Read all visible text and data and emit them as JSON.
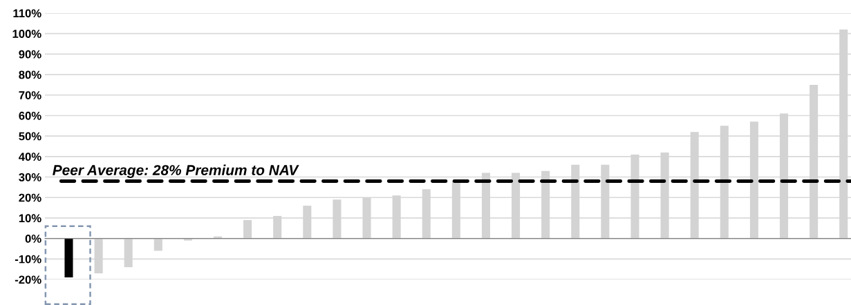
{
  "chart_data": {
    "type": "bar",
    "categories": [
      null,
      null,
      null,
      null,
      null,
      null,
      null,
      null,
      null,
      null,
      null,
      null,
      null,
      null,
      null,
      null,
      null,
      null,
      null,
      null,
      null,
      null,
      null,
      null,
      null,
      null,
      null
    ],
    "values": [
      -19,
      -17,
      -14,
      -6,
      -1,
      1,
      9,
      11,
      16,
      19,
      20,
      21,
      24,
      28,
      32,
      32,
      33,
      36,
      36,
      41,
      42,
      52,
      55,
      57,
      61,
      75,
      102
    ],
    "colors": [
      "#000000",
      "#d3d3d3",
      "#d3d3d3",
      "#d3d3d3",
      "#d3d3d3",
      "#d3d3d3",
      "#d3d3d3",
      "#d3d3d3",
      "#d3d3d3",
      "#d3d3d3",
      "#d3d3d3",
      "#d3d3d3",
      "#d3d3d3",
      "#d3d3d3",
      "#d3d3d3",
      "#d3d3d3",
      "#d3d3d3",
      "#d3d3d3",
      "#d3d3d3",
      "#d3d3d3",
      "#d3d3d3",
      "#d3d3d3",
      "#d3d3d3",
      "#d3d3d3",
      "#d3d3d3",
      "#d3d3d3",
      "#d3d3d3"
    ],
    "ylim": [
      -20,
      110
    ],
    "yticks": [
      {
        "value": -20,
        "label": "-20%"
      },
      {
        "value": -10,
        "label": "-10%"
      },
      {
        "value": 0,
        "label": "0%"
      },
      {
        "value": 10,
        "label": "10%"
      },
      {
        "value": 20,
        "label": "20%"
      },
      {
        "value": 30,
        "label": "30%"
      },
      {
        "value": 40,
        "label": "40%"
      },
      {
        "value": 50,
        "label": "50%"
      },
      {
        "value": 60,
        "label": "60%"
      },
      {
        "value": 70,
        "label": "70%"
      },
      {
        "value": 80,
        "label": "80%"
      },
      {
        "value": 90,
        "label": "90%"
      },
      {
        "value": 100,
        "label": "100%"
      },
      {
        "value": 110,
        "label": "110%"
      }
    ],
    "ref_lines": [
      {
        "axis": "y",
        "value": 28,
        "label": "Peer Average: 28% Premium to NAV",
        "color": "#000000",
        "line_style": "dashed"
      }
    ],
    "grid": "y",
    "tick_labels": "y"
  }
}
